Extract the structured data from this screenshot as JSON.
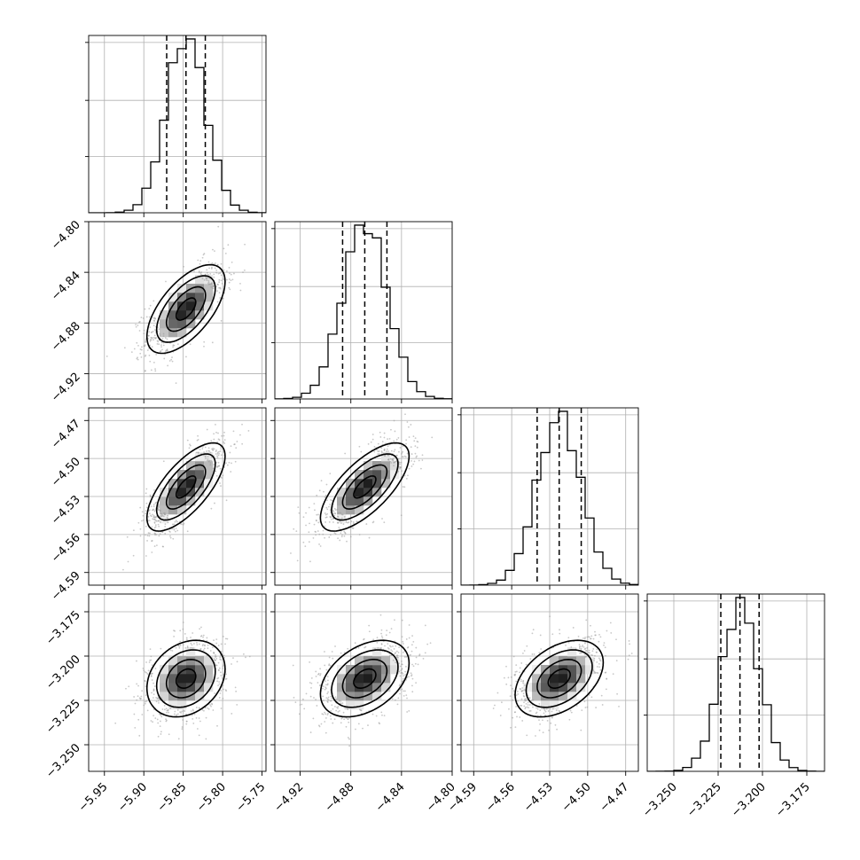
{
  "chart_data": {
    "type": "corner",
    "grid": true,
    "parameters": [
      {
        "range": [
          -5.97,
          -5.745
        ],
        "ticks": [
          -5.95,
          -5.9,
          -5.85,
          -5.8,
          -5.75
        ],
        "tick_labels": [
          "−5.95",
          "−5.90",
          "−5.85",
          "−5.80",
          "−5.75"
        ],
        "mean": -5.8465,
        "std": 0.0248,
        "quantiles": [
          -5.871,
          -5.8465,
          -5.822
        ]
      },
      {
        "range": [
          -4.94,
          -4.8
        ],
        "ticks": [
          -4.92,
          -4.88,
          -4.84,
          -4.8
        ],
        "tick_labels": [
          "−4.92",
          "−4.88",
          "−4.84",
          "−4.80"
        ],
        "mean": -4.869,
        "std": 0.0175,
        "quantiles": [
          -4.8865,
          -4.869,
          -4.8515
        ]
      },
      {
        "range": [
          -4.6,
          -4.46
        ],
        "ticks": [
          -4.59,
          -4.56,
          -4.53,
          -4.5,
          -4.47
        ],
        "tick_labels": [
          "−4.59",
          "−4.56",
          "−4.53",
          "−4.50",
          "−4.47"
        ],
        "mean": -4.5225,
        "std": 0.0174,
        "quantiles": [
          -4.5399,
          -4.5225,
          -4.5051
        ]
      },
      {
        "range": [
          -3.265,
          -3.165
        ],
        "ticks": [
          -3.25,
          -3.225,
          -3.2,
          -3.175
        ],
        "tick_labels": [
          "−3.250",
          "−3.225",
          "−3.200",
          "−3.175"
        ],
        "mean": -3.2127,
        "std": 0.0108,
        "quantiles": [
          -3.2235,
          -3.2127,
          -3.2019
        ]
      }
    ],
    "correlations": [
      [
        1,
        0.62,
        0.7,
        0.25
      ],
      [
        0.62,
        1,
        0.7,
        0.4
      ],
      [
        0.7,
        0.7,
        1,
        0.42
      ],
      [
        0.25,
        0.4,
        0.42,
        1
      ]
    ],
    "hist_bins": 20,
    "contour_levels_sigma": [
      0.5,
      1.0,
      1.5,
      2.0
    ]
  }
}
